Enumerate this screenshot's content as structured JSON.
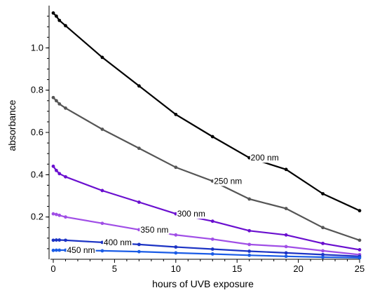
{
  "chart_data": {
    "type": "line",
    "title": "",
    "xlabel": "hours of UVB exposure",
    "ylabel": "absorbance",
    "xlim": [
      0,
      25
    ],
    "ylim": [
      0,
      1.2
    ],
    "grid": false,
    "legend": "inline labels on each line",
    "xticks": [
      0,
      5,
      10,
      15,
      20,
      25
    ],
    "yticks": [
      0.2,
      0.4,
      0.6,
      0.8,
      1.0
    ],
    "ytick_labels": [
      "0.2",
      "0.4",
      "0.6",
      "0.8",
      "1.0"
    ],
    "x": [
      0,
      0.25,
      0.5,
      1,
      4,
      7,
      10,
      13,
      16,
      19,
      22,
      25
    ],
    "series": [
      {
        "name": "200 nm",
        "color": "#000000",
        "label_x": 16,
        "values": [
          1.165,
          1.15,
          1.13,
          1.105,
          0.955,
          0.82,
          0.685,
          0.58,
          0.48,
          0.425,
          0.31,
          0.23
        ]
      },
      {
        "name": "250 nm",
        "color": "#555555",
        "label_x": 13,
        "values": [
          0.765,
          0.75,
          0.735,
          0.715,
          0.615,
          0.525,
          0.435,
          0.37,
          0.285,
          0.24,
          0.15,
          0.09
        ]
      },
      {
        "name": "300 nm",
        "color": "#6a0fcf",
        "label_x": 10,
        "values": [
          0.44,
          0.42,
          0.405,
          0.39,
          0.325,
          0.27,
          0.215,
          0.18,
          0.135,
          0.115,
          0.075,
          0.045
        ]
      },
      {
        "name": "350 nm",
        "color": "#a04ee6",
        "label_x": 7,
        "values": [
          0.215,
          0.212,
          0.208,
          0.2,
          0.17,
          0.14,
          0.115,
          0.095,
          0.07,
          0.06,
          0.04,
          0.022
        ]
      },
      {
        "name": "400 nm",
        "color": "#1c33c4",
        "label_x": 4,
        "values": [
          0.09,
          0.091,
          0.091,
          0.09,
          0.08,
          0.07,
          0.058,
          0.048,
          0.038,
          0.03,
          0.022,
          0.014
        ]
      },
      {
        "name": "450 nm",
        "color": "#1a5ce6",
        "label_x": 1,
        "values": [
          0.042,
          0.043,
          0.043,
          0.043,
          0.04,
          0.036,
          0.03,
          0.025,
          0.019,
          0.014,
          0.01,
          0.007
        ]
      }
    ]
  }
}
